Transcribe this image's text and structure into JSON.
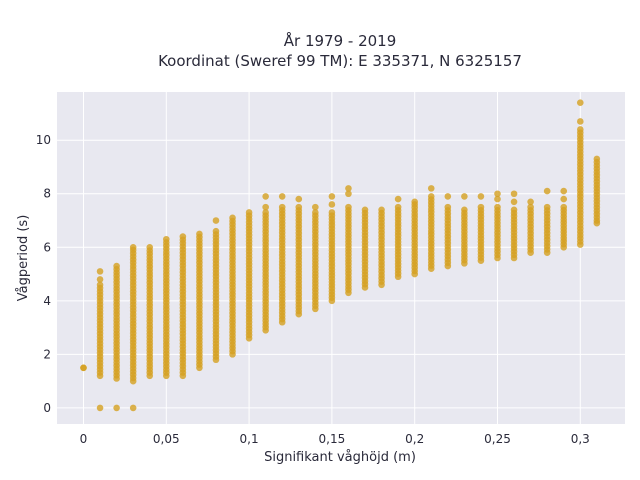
{
  "chart_data": {
    "type": "scatter",
    "title_line1": "År 1979 - 2019",
    "title_line2": "Koordinat (Sweref 99 TM): E 335371, N 6325157",
    "xlabel": "Signifikant våghöjd (m)",
    "ylabel": "Vågperiod (s)",
    "xlim": [
      -0.016,
      0.327
    ],
    "ylim": [
      -0.6,
      11.8
    ],
    "x_ticks": [
      0,
      0.05,
      0.1,
      0.15,
      0.2,
      0.25,
      0.3
    ],
    "x_tick_labels": [
      "0",
      "0,05",
      "0,1",
      "0,15",
      "0,2",
      "0,25",
      "0,3"
    ],
    "y_ticks": [
      0,
      2,
      4,
      6,
      8,
      10
    ],
    "y_tick_labels": [
      "0",
      "2",
      "4",
      "6",
      "8",
      "10"
    ],
    "grid": true,
    "marker_color": "#d4a020",
    "plot_background": "#e8e8f0",
    "columns": [
      {
        "x": 0.0,
        "ymin": 1.5,
        "ymax": 1.5,
        "extra": []
      },
      {
        "x": 0.01,
        "ymin": 1.2,
        "ymax": 4.6,
        "extra": [
          0,
          4.8,
          5.1
        ]
      },
      {
        "x": 0.02,
        "ymin": 1.1,
        "ymax": 5.3,
        "extra": [
          0
        ]
      },
      {
        "x": 0.03,
        "ymin": 1.0,
        "ymax": 5.9,
        "extra": [
          0,
          6.0
        ]
      },
      {
        "x": 0.04,
        "ymin": 1.2,
        "ymax": 6.0,
        "extra": []
      },
      {
        "x": 0.05,
        "ymin": 1.2,
        "ymax": 6.3,
        "extra": []
      },
      {
        "x": 0.06,
        "ymin": 1.2,
        "ymax": 6.4,
        "extra": []
      },
      {
        "x": 0.07,
        "ymin": 1.5,
        "ymax": 6.5,
        "extra": []
      },
      {
        "x": 0.08,
        "ymin": 1.8,
        "ymax": 6.6,
        "extra": [
          7.0
        ]
      },
      {
        "x": 0.09,
        "ymin": 2.0,
        "ymax": 7.1,
        "extra": []
      },
      {
        "x": 0.1,
        "ymin": 2.6,
        "ymax": 7.3,
        "extra": []
      },
      {
        "x": 0.11,
        "ymin": 2.9,
        "ymax": 7.3,
        "extra": [
          7.5,
          7.9
        ]
      },
      {
        "x": 0.12,
        "ymin": 3.2,
        "ymax": 7.5,
        "extra": [
          7.9
        ]
      },
      {
        "x": 0.13,
        "ymin": 3.5,
        "ymax": 7.5,
        "extra": [
          7.8
        ]
      },
      {
        "x": 0.14,
        "ymin": 3.7,
        "ymax": 7.3,
        "extra": [
          7.5
        ]
      },
      {
        "x": 0.15,
        "ymin": 4.0,
        "ymax": 7.3,
        "extra": [
          7.6,
          7.9
        ]
      },
      {
        "x": 0.16,
        "ymin": 4.3,
        "ymax": 7.5,
        "extra": [
          8.0,
          8.2
        ]
      },
      {
        "x": 0.17,
        "ymin": 4.5,
        "ymax": 7.4,
        "extra": []
      },
      {
        "x": 0.18,
        "ymin": 4.6,
        "ymax": 7.4,
        "extra": []
      },
      {
        "x": 0.19,
        "ymin": 4.9,
        "ymax": 7.5,
        "extra": [
          7.8
        ]
      },
      {
        "x": 0.2,
        "ymin": 5.0,
        "ymax": 7.6,
        "extra": [
          7.7
        ]
      },
      {
        "x": 0.21,
        "ymin": 5.2,
        "ymax": 7.9,
        "extra": [
          8.2
        ]
      },
      {
        "x": 0.22,
        "ymin": 5.3,
        "ymax": 7.5,
        "extra": [
          7.9
        ]
      },
      {
        "x": 0.23,
        "ymin": 5.4,
        "ymax": 7.4,
        "extra": [
          7.9
        ]
      },
      {
        "x": 0.24,
        "ymin": 5.5,
        "ymax": 7.5,
        "extra": [
          7.9
        ]
      },
      {
        "x": 0.25,
        "ymin": 5.6,
        "ymax": 7.5,
        "extra": [
          7.8,
          8.0
        ]
      },
      {
        "x": 0.26,
        "ymin": 5.6,
        "ymax": 7.4,
        "extra": [
          7.7,
          8.0
        ]
      },
      {
        "x": 0.27,
        "ymin": 5.8,
        "ymax": 7.5,
        "extra": [
          7.7
        ]
      },
      {
        "x": 0.28,
        "ymin": 5.8,
        "ymax": 7.5,
        "extra": [
          8.1
        ]
      },
      {
        "x": 0.29,
        "ymin": 6.0,
        "ymax": 7.5,
        "extra": [
          7.8,
          8.1
        ]
      },
      {
        "x": 0.3,
        "ymin": 6.1,
        "ymax": 10.4,
        "extra": [
          10.7,
          11.4
        ]
      },
      {
        "x": 0.31,
        "ymin": 7.0,
        "ymax": 9.3,
        "extra": [
          6.9
        ]
      }
    ]
  }
}
